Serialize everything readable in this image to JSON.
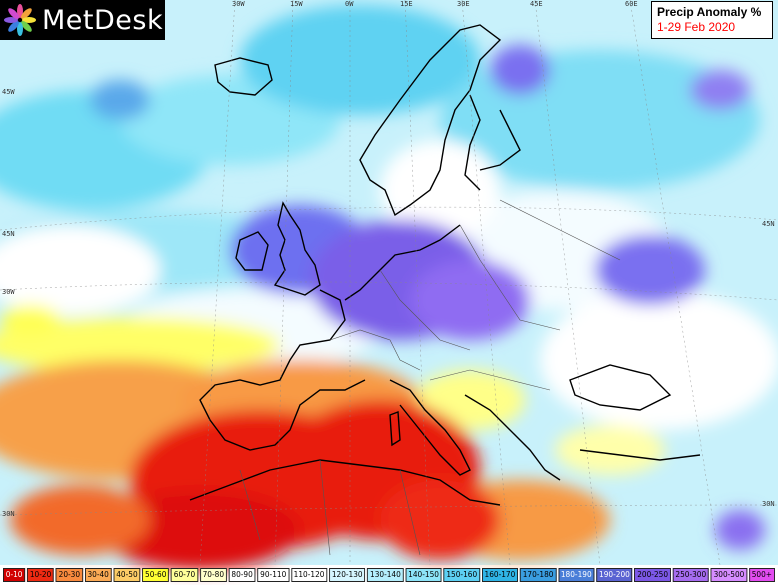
{
  "logo": {
    "text": "MetDesk",
    "icon": "flower-logo-icon"
  },
  "title": {
    "line1": "Precip Anomaly %",
    "line2": "1-29 Feb 2020",
    "line2_color": "#ff0000"
  },
  "longitude_labels": [
    "30W",
    "15W",
    "0W",
    "15E",
    "30E",
    "45E",
    "60E"
  ],
  "latitude_labels": [
    "45W",
    "45N",
    "30W",
    "45N",
    "30N",
    "30N"
  ],
  "legend": [
    {
      "label": "0-10",
      "color": "#d10000"
    },
    {
      "label": "10-20",
      "color": "#ee2a12"
    },
    {
      "label": "20-30",
      "color": "#f88a3e"
    },
    {
      "label": "30-40",
      "color": "#fbaa55"
    },
    {
      "label": "40-50",
      "color": "#fccc66"
    },
    {
      "label": "50-60",
      "color": "#ffff33"
    },
    {
      "label": "60-70",
      "color": "#ffff99"
    },
    {
      "label": "70-80",
      "color": "#ffffcc"
    },
    {
      "label": "80-90",
      "color": "#ffffff"
    },
    {
      "label": "90-110",
      "color": "#ffffff"
    },
    {
      "label": "110-120",
      "color": "#ffffff"
    },
    {
      "label": "120-130",
      "color": "#d6f6ff"
    },
    {
      "label": "130-140",
      "color": "#b4eefc"
    },
    {
      "label": "140-150",
      "color": "#8de4f8"
    },
    {
      "label": "150-160",
      "color": "#5dd0f3"
    },
    {
      "label": "160-170",
      "color": "#2fb4e6"
    },
    {
      "label": "170-180",
      "color": "#3a9de0"
    },
    {
      "label": "180-190",
      "color": "#4a7ed8"
    },
    {
      "label": "190-200",
      "color": "#5a64d2"
    },
    {
      "label": "200-250",
      "color": "#7c58e6"
    },
    {
      "label": "250-300",
      "color": "#a66cf0"
    },
    {
      "label": "300-500",
      "color": "#d58cff"
    },
    {
      "label": "500+",
      "color": "#e24cf0"
    }
  ]
}
